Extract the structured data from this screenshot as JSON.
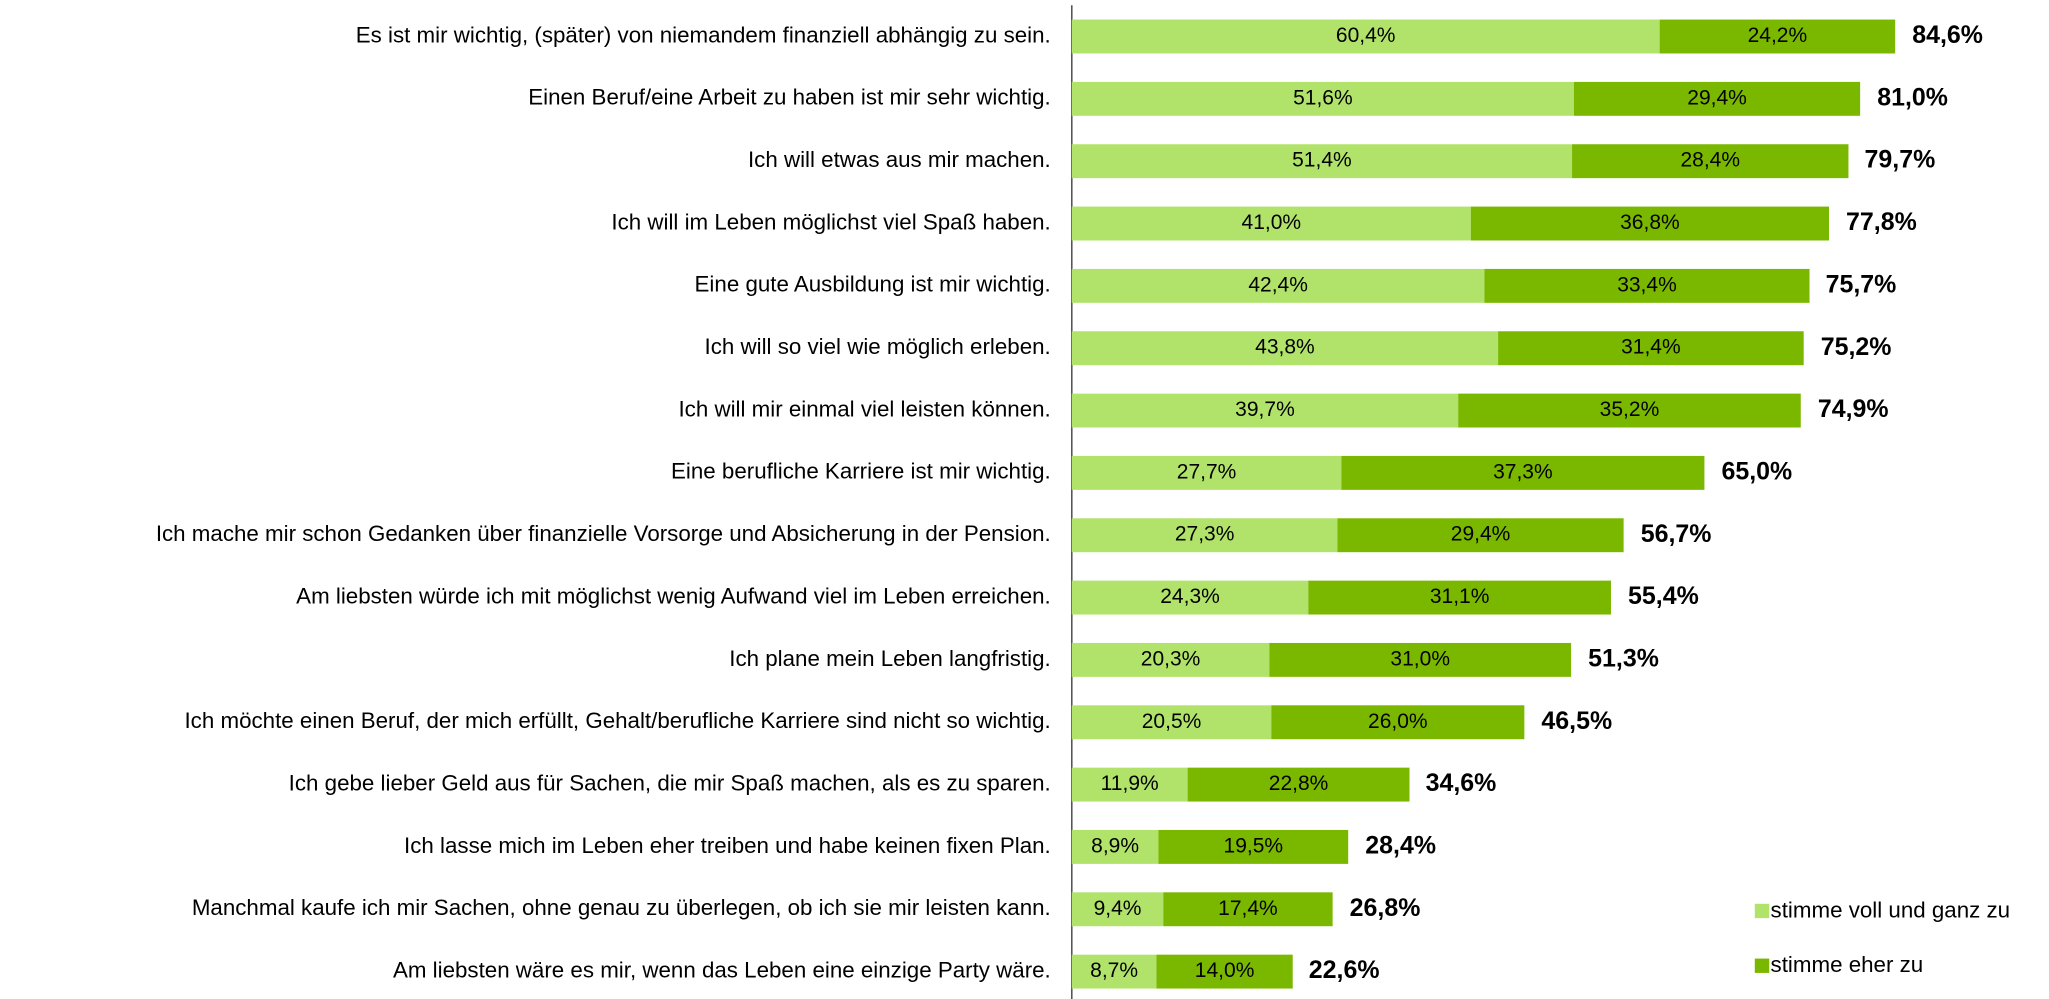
{
  "chart_data": {
    "type": "stacked-barh",
    "categories": [
      "Es ist mir wichtig, (später) von niemandem finanziell abhängig zu sein.",
      "Einen Beruf/eine Arbeit zu haben ist mir sehr wichtig.",
      "Ich will etwas aus mir machen.",
      "Ich will im Leben möglichst viel Spaß haben.",
      "Eine gute Ausbildung ist mir wichtig.",
      "Ich will so viel wie möglich erleben.",
      "Ich will mir einmal viel leisten können.",
      "Eine berufliche Karriere ist mir wichtig.",
      "Ich mache mir schon Gedanken über finanzielle Vorsorge und Absicherung in der Pension.",
      "Am liebsten würde ich mit möglichst wenig Aufwand viel im Leben erreichen.",
      "Ich plane mein Leben langfristig.",
      "Ich möchte einen Beruf, der mich erfüllt, Gehalt/berufliche Karriere sind nicht so wichtig.",
      "Ich gebe lieber Geld aus für Sachen, die mir Spaß machen, als es zu sparen.",
      "Ich lasse mich im Leben eher treiben und habe keinen fixen Plan.",
      "Manchmal kaufe ich mir Sachen, ohne genau zu überlegen, ob ich sie mir leisten kann.",
      "Am liebsten wäre es mir, wenn das Leben eine einzige Party wäre."
    ],
    "series": [
      {
        "name": "stimme voll und ganz zu",
        "color": "#b1e36b",
        "values": [
          60.4,
          51.6,
          51.4,
          41.0,
          42.4,
          43.8,
          39.7,
          27.7,
          27.3,
          24.3,
          20.3,
          20.5,
          11.9,
          8.9,
          9.4,
          8.7
        ],
        "value_labels": [
          "60,4%",
          "51,6%",
          "51,4%",
          "41,0%",
          "42,4%",
          "43,8%",
          "39,7%",
          "27,7%",
          "27,3%",
          "24,3%",
          "20,3%",
          "20,5%",
          "11,9%",
          "8,9%",
          "9,4%",
          "8,7%"
        ]
      },
      {
        "name": "stimme eher zu",
        "color": "#7ab800",
        "values": [
          24.2,
          29.4,
          28.4,
          36.8,
          33.4,
          31.4,
          35.2,
          37.3,
          29.4,
          31.1,
          31.0,
          26.0,
          22.8,
          19.5,
          17.4,
          14.0
        ],
        "value_labels": [
          "24,2%",
          "29,4%",
          "28,4%",
          "36,8%",
          "33,4%",
          "31,4%",
          "35,2%",
          "37,3%",
          "29,4%",
          "31,1%",
          "31,0%",
          "26,0%",
          "22,8%",
          "19,5%",
          "17,4%",
          "14,0%"
        ]
      }
    ],
    "totals": [
      84.6,
      81.0,
      79.7,
      77.8,
      75.7,
      75.2,
      74.9,
      65.0,
      56.7,
      55.4,
      51.3,
      46.5,
      34.6,
      28.4,
      26.8,
      22.6
    ],
    "total_labels": [
      "84,6%",
      "81,0%",
      "79,7%",
      "77,8%",
      "75,7%",
      "75,2%",
      "74,9%",
      "65,0%",
      "56,7%",
      "55,4%",
      "51,3%",
      "46,5%",
      "34,6%",
      "28,4%",
      "26,8%",
      "22,6%"
    ],
    "legend": "lower right"
  }
}
